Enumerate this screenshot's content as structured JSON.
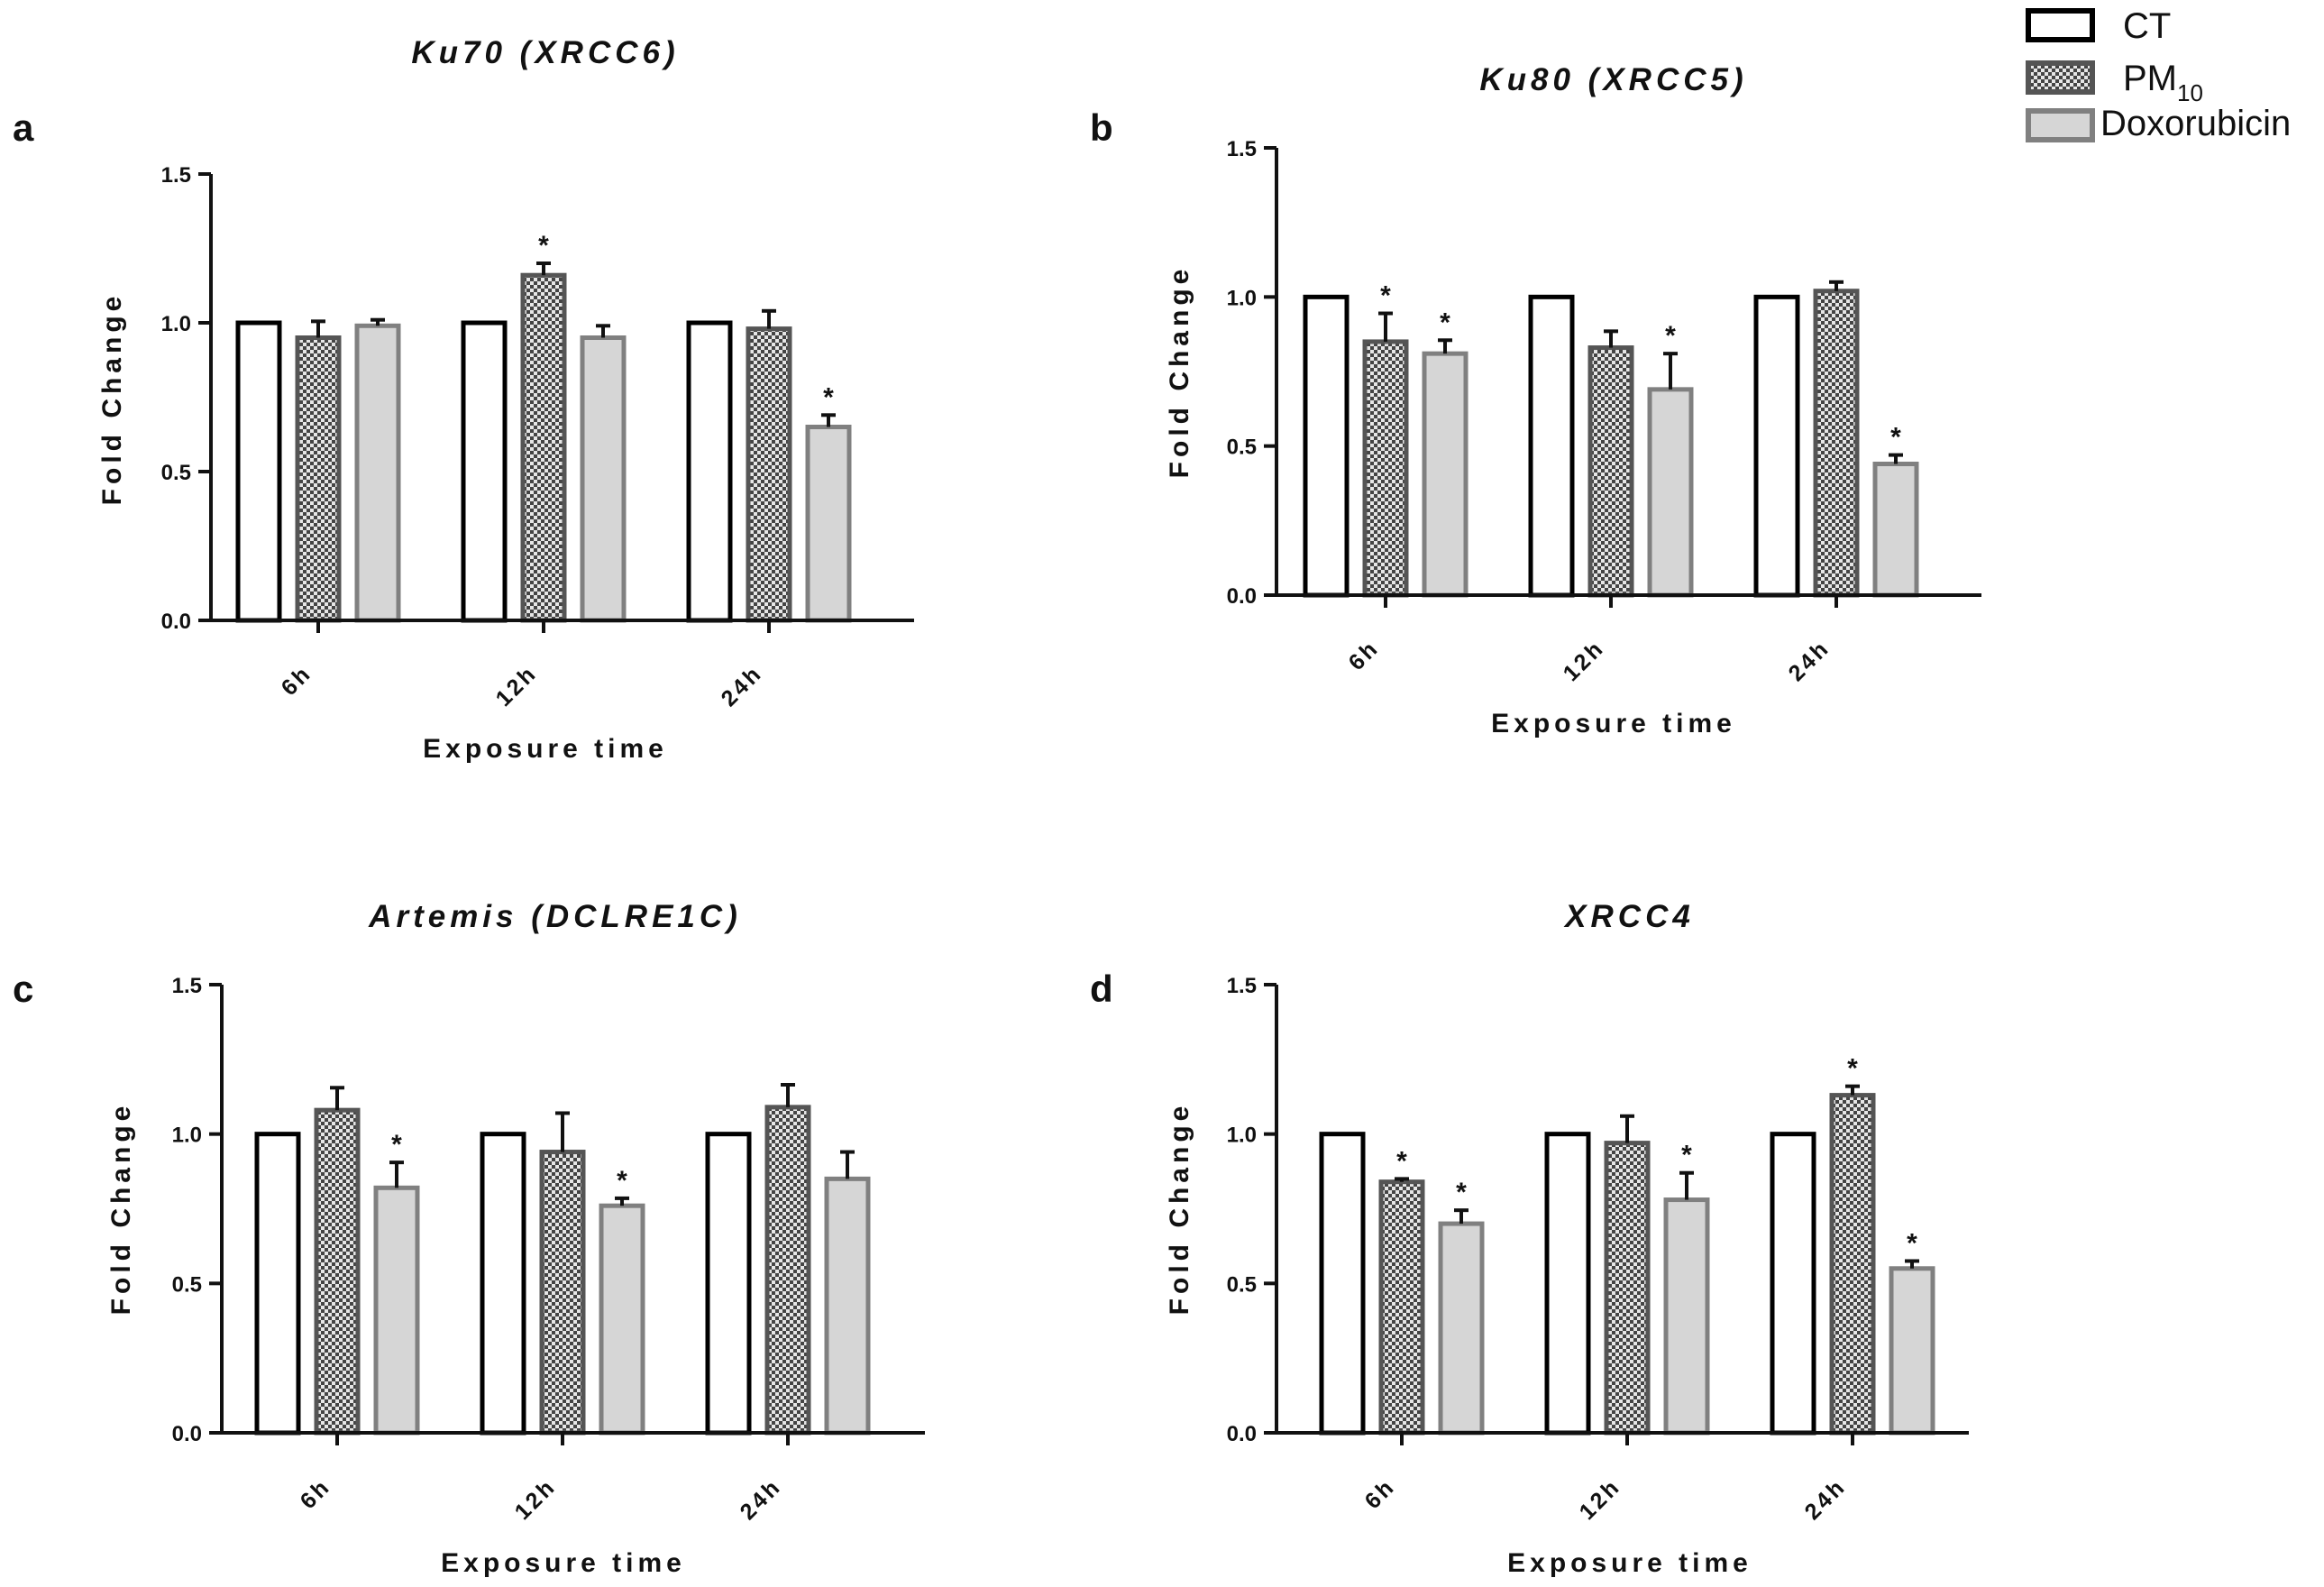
{
  "legend": {
    "items": [
      {
        "name": "CT",
        "pattern": "white"
      },
      {
        "name": "PM",
        "subscript": "10",
        "pattern": "checker"
      },
      {
        "name": "Doxorubicin",
        "pattern": "gray"
      }
    ]
  },
  "colors": {
    "axis": "#111111",
    "ct_fill": "#ffffff",
    "ct_stroke": "#000000",
    "pm_stroke": "#555555",
    "pm_light": "#e6e6e6",
    "pm_dark": "#444444",
    "dox_fill": "#d6d6d6",
    "dox_stroke": "#808080"
  },
  "chart_data": [
    {
      "panel": "a",
      "type": "bar",
      "title": "Ku70 (XRCC6)",
      "xlabel": "Exposure time",
      "ylabel": "Fold Change",
      "ylim": [
        0,
        1.5
      ],
      "yticks": [
        "0.0",
        "0.5",
        "1.0",
        "1.5"
      ],
      "categories": [
        "6h",
        "12h",
        "24h"
      ],
      "series": [
        {
          "name": "CT",
          "values": [
            1.0,
            1.0,
            1.0
          ],
          "errors": [
            0,
            0,
            0
          ],
          "significant": [
            false,
            false,
            false
          ]
        },
        {
          "name": "PM10",
          "values": [
            0.95,
            1.16,
            0.98
          ],
          "errors": [
            0.055,
            0.04,
            0.06
          ],
          "significant": [
            false,
            true,
            false
          ]
        },
        {
          "name": "Doxorubicin",
          "values": [
            0.99,
            0.95,
            0.65
          ],
          "errors": [
            0.02,
            0.04,
            0.04
          ],
          "significant": [
            false,
            false,
            true
          ]
        }
      ]
    },
    {
      "panel": "b",
      "type": "bar",
      "title": "Ku80 (XRCC5)",
      "xlabel": "Exposure time",
      "ylabel": "Fold Change",
      "ylim": [
        0,
        1.5
      ],
      "yticks": [
        "0.0",
        "0.5",
        "1.0",
        "1.5"
      ],
      "categories": [
        "6h",
        "12h",
        "24h"
      ],
      "series": [
        {
          "name": "CT",
          "values": [
            1.0,
            1.0,
            1.0
          ],
          "errors": [
            0,
            0,
            0
          ],
          "significant": [
            false,
            false,
            false
          ]
        },
        {
          "name": "PM10",
          "values": [
            0.85,
            0.83,
            1.02
          ],
          "errors": [
            0.095,
            0.055,
            0.03
          ],
          "significant": [
            true,
            false,
            false
          ]
        },
        {
          "name": "Doxorubicin",
          "values": [
            0.81,
            0.69,
            0.44
          ],
          "errors": [
            0.045,
            0.12,
            0.03
          ],
          "significant": [
            true,
            true,
            true
          ]
        }
      ]
    },
    {
      "panel": "c",
      "type": "bar",
      "title": "Artemis (DCLRE1C)",
      "xlabel": "Exposure time",
      "ylabel": "Fold Change",
      "ylim": [
        0,
        1.5
      ],
      "yticks": [
        "0.0",
        "0.5",
        "1.0",
        "1.5"
      ],
      "categories": [
        "6h",
        "12h",
        "24h"
      ],
      "series": [
        {
          "name": "CT",
          "values": [
            1.0,
            1.0,
            1.0
          ],
          "errors": [
            0,
            0,
            0
          ],
          "significant": [
            false,
            false,
            false
          ]
        },
        {
          "name": "PM10",
          "values": [
            1.08,
            0.94,
            1.09
          ],
          "errors": [
            0.075,
            0.13,
            0.075
          ],
          "significant": [
            false,
            false,
            false
          ]
        },
        {
          "name": "Doxorubicin",
          "values": [
            0.82,
            0.76,
            0.85
          ],
          "errors": [
            0.085,
            0.025,
            0.09
          ],
          "significant": [
            true,
            true,
            false
          ]
        }
      ]
    },
    {
      "panel": "d",
      "type": "bar",
      "title": "XRCC4",
      "xlabel": "Exposure time",
      "ylabel": "Fold Change",
      "ylim": [
        0,
        1.5
      ],
      "yticks": [
        "0.0",
        "0.5",
        "1.0",
        "1.5"
      ],
      "categories": [
        "6h",
        "12h",
        "24h"
      ],
      "series": [
        {
          "name": "CT",
          "values": [
            1.0,
            1.0,
            1.0
          ],
          "errors": [
            0,
            0,
            0
          ],
          "significant": [
            false,
            false,
            false
          ]
        },
        {
          "name": "PM10",
          "values": [
            0.84,
            0.97,
            1.13
          ],
          "errors": [
            0.01,
            0.09,
            0.03
          ],
          "significant": [
            true,
            false,
            true
          ]
        },
        {
          "name": "Doxorubicin",
          "values": [
            0.7,
            0.78,
            0.55
          ],
          "errors": [
            0.045,
            0.09,
            0.025
          ],
          "significant": [
            true,
            true,
            true
          ]
        }
      ]
    }
  ]
}
